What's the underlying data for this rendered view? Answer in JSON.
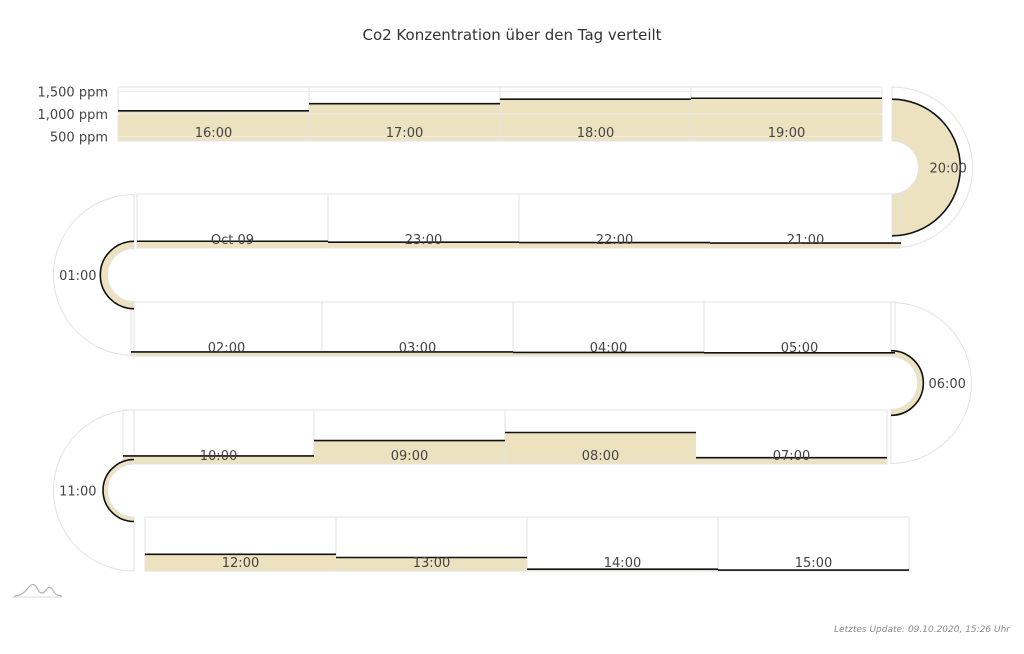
{
  "chart_data": {
    "type": "area",
    "title": "Co2 Konzentration über den Tag verteilt",
    "ylabel": "",
    "y_ticks": [
      "1,500 ppm",
      "1,000 ppm",
      "500 ppm"
    ],
    "ylim": [
      400,
      1600
    ],
    "series": [
      {
        "categories": [
          "16:00",
          "17:00",
          "18:00",
          "19:00",
          "20:00",
          "21:00",
          "22:00",
          "23:00",
          "Oct 09",
          "01:00",
          "02:00",
          "03:00",
          "04:00",
          "05:00",
          "06:00",
          "07:00",
          "08:00",
          "09:00",
          "10:00",
          "11:00",
          "12:00",
          "13:00",
          "14:00",
          "15:00"
        ],
        "values": [
          1070,
          1230,
          1330,
          1350,
          1330,
          510,
          520,
          530,
          550,
          560,
          490,
          490,
          480,
          470,
          530,
          540,
          1100,
          920,
          580,
          500,
          770,
          700,
          440,
          420
        ]
      }
    ],
    "colors": {
      "area": "#ede2c0",
      "line": "#111111",
      "grid": "#e3e3e3"
    },
    "legend": "none"
  },
  "footer": {
    "update_text": "Letztes Update: 09.10.2020, 15:26 Uhr"
  }
}
